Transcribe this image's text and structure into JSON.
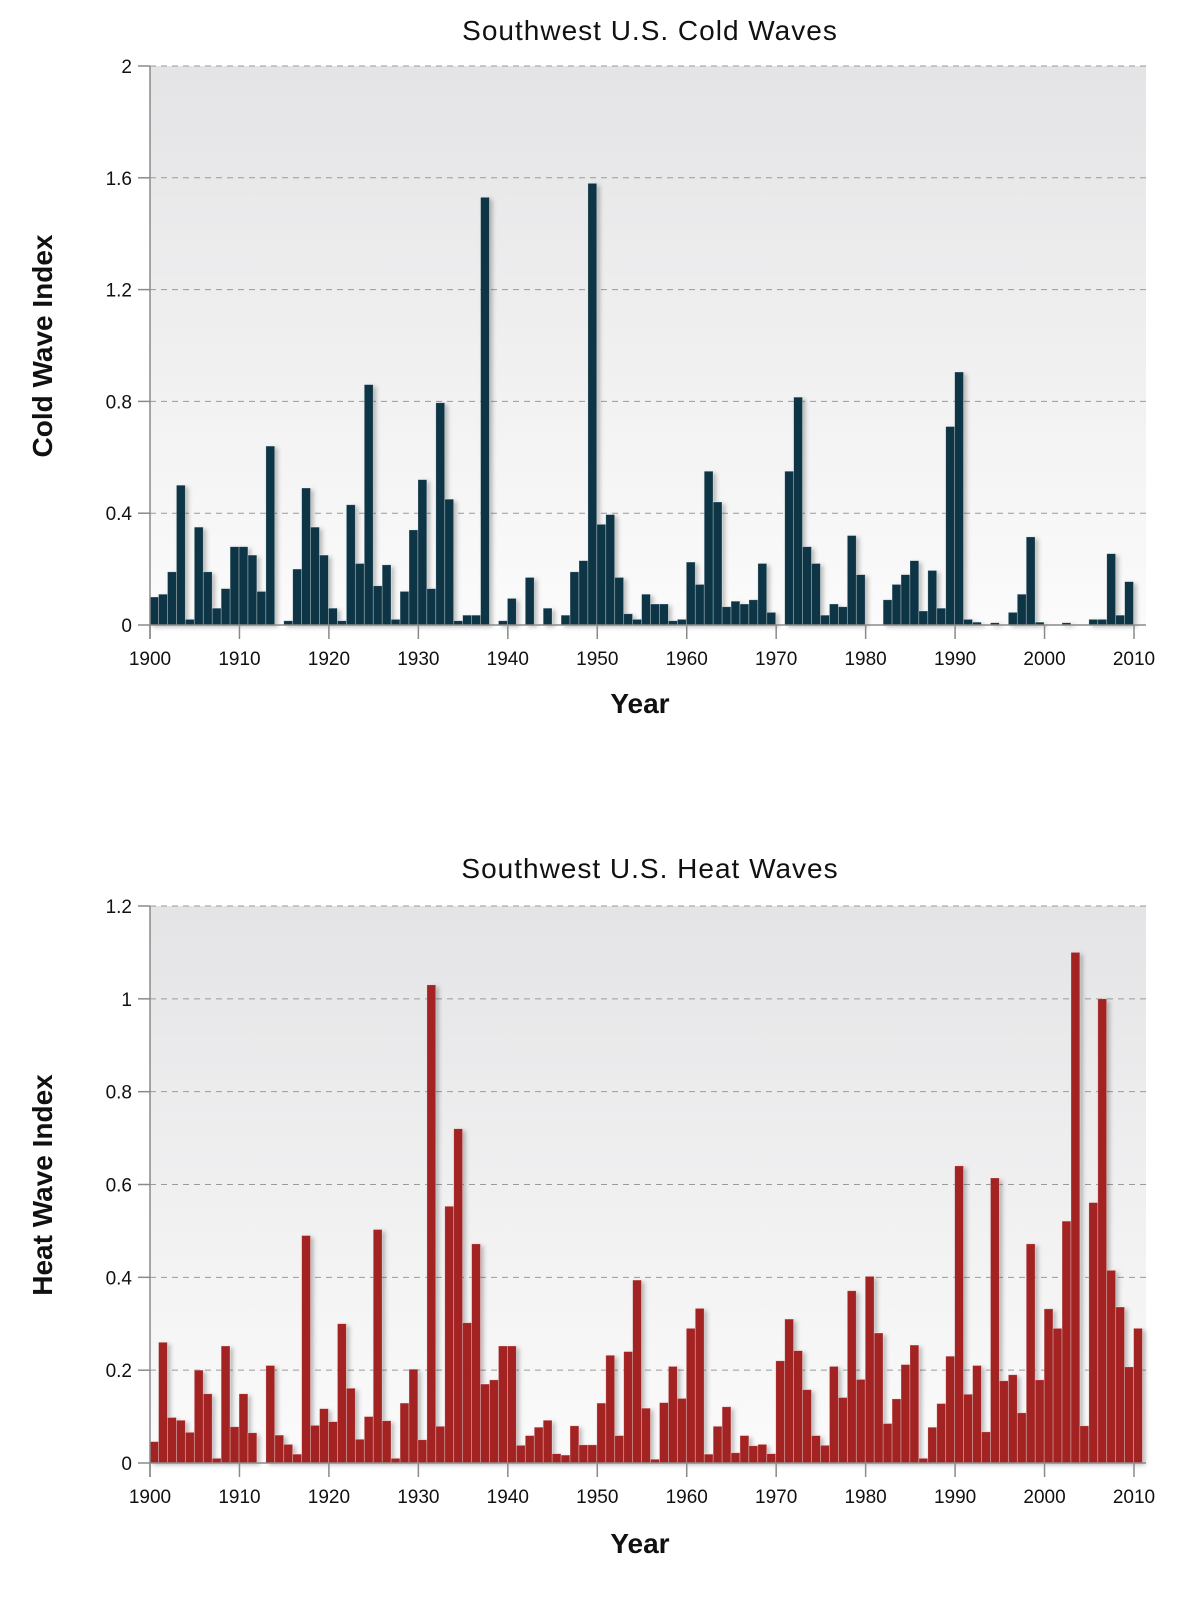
{
  "chart_data": [
    {
      "type": "bar",
      "title": "Southwest U.S. Cold Waves",
      "xlabel": "Year",
      "ylabel": "Cold Wave Index",
      "xlim": [
        1900,
        2010
      ],
      "ylim": [
        0,
        2
      ],
      "x_ticks": [
        "1900",
        "1910",
        "1920",
        "1930",
        "1940",
        "1950",
        "1960",
        "1970",
        "1980",
        "1990",
        "2000",
        "2010"
      ],
      "y_ticks": [
        "0",
        "0.4",
        "0.8",
        "1.2",
        "1.6",
        "2"
      ],
      "grid": true,
      "color": "#0d3545",
      "x_start": 1900,
      "values": [
        0.1,
        0.11,
        0.19,
        0.5,
        0.02,
        0.35,
        0.19,
        0.06,
        0.13,
        0.28,
        0.28,
        0.25,
        0.12,
        0.64,
        0,
        0.015,
        0.2,
        0.49,
        0.35,
        0.25,
        0.06,
        0.015,
        0.43,
        0.22,
        0.86,
        0.14,
        0.215,
        0.02,
        0.12,
        0.34,
        0.52,
        0.13,
        0.795,
        0.45,
        0.015,
        0.035,
        0.035,
        1.53,
        0,
        0.015,
        0.095,
        0,
        0.17,
        0,
        0.06,
        0,
        0.035,
        0.19,
        0.23,
        1.58,
        0.36,
        0.395,
        0.17,
        0.04,
        0.02,
        0.11,
        0.075,
        0.075,
        0.015,
        0.02,
        0.225,
        0.145,
        0.55,
        0.44,
        0.065,
        0.085,
        0.075,
        0.09,
        0.22,
        0.045,
        0,
        0.55,
        0.815,
        0.28,
        0.22,
        0.035,
        0.075,
        0.065,
        0.32,
        0.18,
        0,
        0,
        0.09,
        0.145,
        0.18,
        0.23,
        0.05,
        0.195,
        0.06,
        0.71,
        0.905,
        0.02,
        0.01,
        0,
        0.008,
        0,
        0.045,
        0.11,
        0.315,
        0.01,
        0,
        0,
        0.008,
        0,
        0,
        0.02,
        0.02,
        0.255,
        0.035,
        0.155
      ]
    },
    {
      "type": "bar",
      "title": "Southwest U.S. Heat Waves",
      "xlabel": "Year",
      "ylabel": "Heat Wave Index",
      "xlim": [
        1900,
        2010
      ],
      "ylim": [
        0,
        1.2
      ],
      "x_ticks": [
        "1900",
        "1910",
        "1920",
        "1930",
        "1940",
        "1950",
        "1960",
        "1970",
        "1980",
        "1990",
        "2000",
        "2010"
      ],
      "y_ticks": [
        "0",
        "0.2",
        "0.4",
        "0.6",
        "0.8",
        "1",
        "1.2"
      ],
      "grid": true,
      "color": "#a32424",
      "x_start": 1900,
      "values": [
        0.046,
        0.26,
        0.098,
        0.092,
        0.066,
        0.2,
        0.149,
        0.01,
        0.252,
        0.078,
        0.149,
        0.065,
        0,
        0.21,
        0.06,
        0.04,
        0.019,
        0.49,
        0.081,
        0.117,
        0.089,
        0.3,
        0.161,
        0.051,
        0.1,
        0.503,
        0.091,
        0.01,
        0.129,
        0.202,
        0.05,
        1.03,
        0.079,
        0.553,
        0.72,
        0.302,
        0.472,
        0.17,
        0.179,
        0.252,
        0.252,
        0.038,
        0.059,
        0.077,
        0.092,
        0.02,
        0.017,
        0.08,
        0.039,
        0.039,
        0.129,
        0.232,
        0.059,
        0.24,
        0.394,
        0.118,
        0.008,
        0.13,
        0.208,
        0.139,
        0.29,
        0.333,
        0.019,
        0.079,
        0.121,
        0.022,
        0.059,
        0.037,
        0.04,
        0.02,
        0.22,
        0.31,
        0.242,
        0.158,
        0.059,
        0.038,
        0.208,
        0.141,
        0.371,
        0.18,
        0.402,
        0.28,
        0.085,
        0.138,
        0.212,
        0.254,
        0.01,
        0.077,
        0.128,
        0.23,
        0.64,
        0.148,
        0.21,
        0.067,
        0.614,
        0.177,
        0.19,
        0.108,
        0.472,
        0.179,
        0.332,
        0.29,
        0.521,
        1.1,
        0.08,
        0.561,
        1.0,
        0.415,
        0.336,
        0.207,
        0.29
      ]
    }
  ]
}
